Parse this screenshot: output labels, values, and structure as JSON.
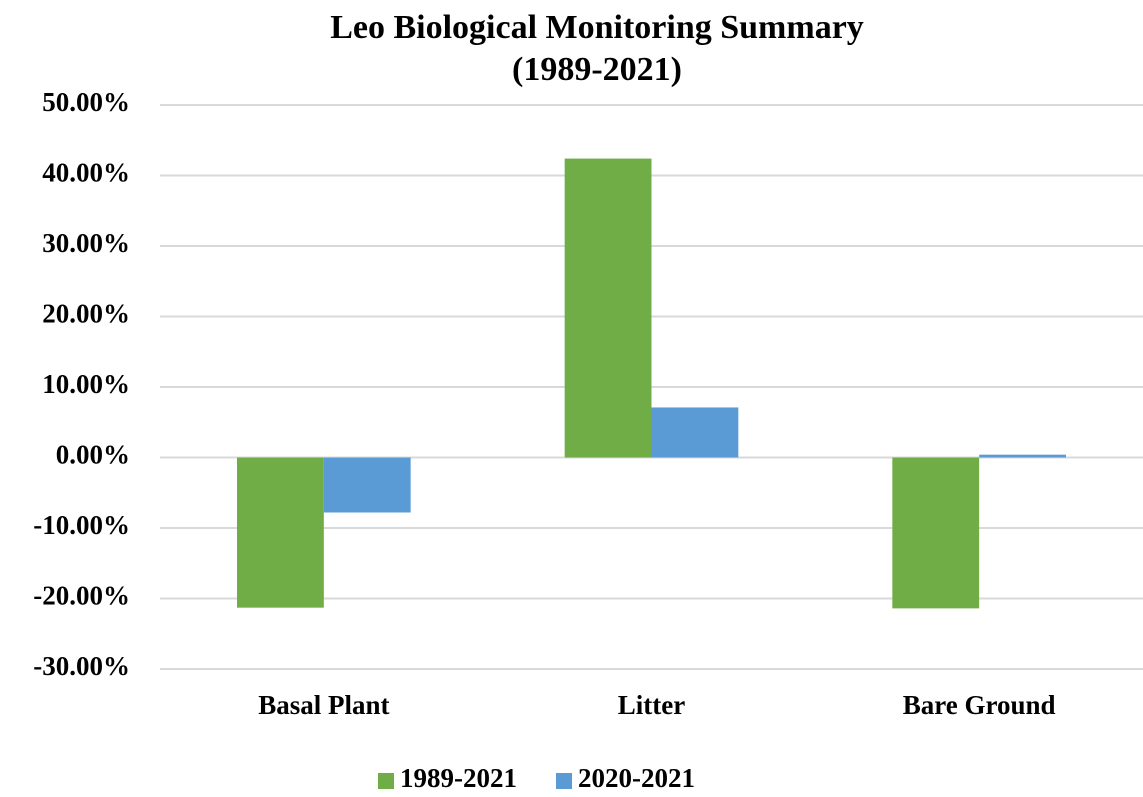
{
  "chart_data": {
    "type": "bar",
    "title": [
      "Leo Biological Monitoring Summary",
      "(1989-2021)"
    ],
    "categories": [
      "Basal Plant",
      "Litter",
      "Bare Ground"
    ],
    "series": [
      {
        "name": "1989-2021",
        "color": "#70ad47",
        "values": [
          -21.3,
          42.4,
          -21.4
        ]
      },
      {
        "name": "2020-2021",
        "color": "#5b9bd5",
        "values": [
          -7.8,
          7.1,
          0.4
        ]
      }
    ],
    "ylim": [
      -30,
      50
    ],
    "yticks": [
      {
        "value": -30,
        "label": "-30.00%"
      },
      {
        "value": -20,
        "label": "-20.00%"
      },
      {
        "value": -10,
        "label": "-10.00%"
      },
      {
        "value": 0,
        "label": "0.00%"
      },
      {
        "value": 10,
        "label": "10.00%"
      },
      {
        "value": 20,
        "label": "20.00%"
      },
      {
        "value": 30,
        "label": "30.00%"
      },
      {
        "value": 40,
        "label": "40.00%"
      },
      {
        "value": 50,
        "label": "50.00%"
      }
    ],
    "grid": true,
    "legend": "bottom"
  }
}
